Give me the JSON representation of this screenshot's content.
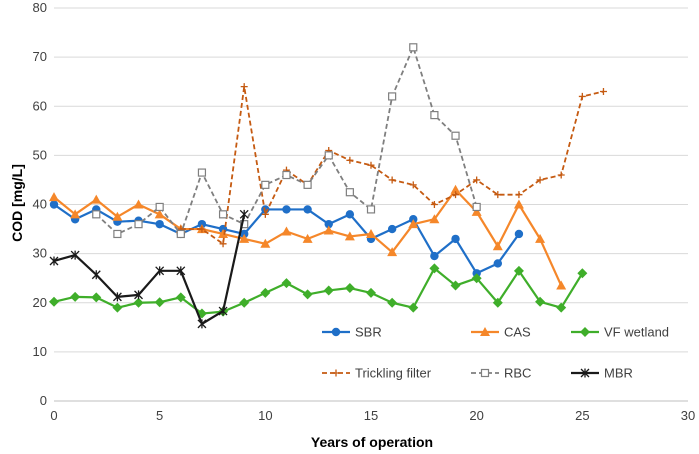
{
  "chart_data": {
    "type": "line",
    "title": "",
    "xlabel": "Years of operation",
    "ylabel": "COD [mg/L]",
    "xlim": [
      0,
      30
    ],
    "ylim": [
      0,
      80
    ],
    "xticks": [
      "0",
      "5",
      "10",
      "15",
      "20",
      "25",
      "30"
    ],
    "yticks": [
      "0",
      "10",
      "20",
      "30",
      "40",
      "50",
      "60",
      "70",
      "80"
    ],
    "grid": "horizontal",
    "legend_position": "lower-center",
    "series": [
      {
        "name": "SBR",
        "color": "#1f6fc8",
        "marker": "circle",
        "dash": "solid",
        "x": [
          0,
          1,
          2,
          3,
          4,
          5,
          6,
          7,
          8,
          9,
          10,
          11,
          12,
          13,
          14,
          15,
          16,
          17,
          18,
          19,
          20,
          21,
          22
        ],
        "y": [
          40,
          37,
          39,
          36.5,
          36.7,
          36,
          34,
          36,
          35,
          34,
          39,
          39,
          39,
          36,
          38,
          33,
          35,
          37,
          29.5,
          33,
          26,
          28,
          34
        ]
      },
      {
        "name": "CAS",
        "color": "#f5872a",
        "marker": "triangle",
        "dash": "solid",
        "x": [
          0,
          1,
          2,
          3,
          4,
          5,
          6,
          7,
          8,
          9,
          10,
          11,
          12,
          13,
          14,
          15,
          16,
          17,
          18,
          19,
          20,
          21,
          22,
          23,
          24
        ],
        "y": [
          41.5,
          38,
          41,
          37.5,
          40,
          38,
          35,
          35,
          34,
          33,
          32,
          34.5,
          33,
          34.7,
          33.5,
          34,
          30.3,
          36,
          37,
          43,
          38.5,
          31.5,
          40,
          33,
          23.5
        ]
      },
      {
        "name": "VF wetland",
        "color": "#3fae2a",
        "marker": "diamond",
        "dash": "solid",
        "x": [
          0,
          1,
          2,
          3,
          4,
          5,
          6,
          7,
          8,
          9,
          10,
          11,
          12,
          13,
          14,
          15,
          16,
          17,
          18,
          19,
          20,
          21,
          22,
          23,
          24,
          25
        ],
        "y": [
          20.2,
          21.2,
          21.1,
          19,
          20,
          20.1,
          21.1,
          17.8,
          18.2,
          20,
          22,
          24,
          21.7,
          22.5,
          23,
          22,
          20,
          19,
          27,
          23.5,
          25,
          20,
          26.5,
          20.2,
          19,
          26
        ]
      },
      {
        "name": "Trickling filter",
        "color": "#c55a11",
        "marker": "plus",
        "dash": "dashed",
        "x": [
          6,
          7,
          8,
          9,
          10,
          11,
          12,
          13,
          14,
          15,
          16,
          17,
          18,
          19,
          20,
          21,
          22,
          23,
          24,
          25,
          26
        ],
        "y": [
          35,
          35,
          32,
          64,
          38,
          47,
          44,
          51,
          49,
          48,
          45,
          44,
          40,
          42,
          45,
          42,
          42,
          45,
          46,
          62,
          63
        ]
      },
      {
        "name": "RBC",
        "color": "#7f7f7f",
        "marker": "square",
        "dash": "dashed",
        "x": [
          2,
          3,
          4,
          5,
          6,
          7,
          8,
          9,
          10,
          11,
          12,
          13,
          14,
          15,
          16,
          17,
          18,
          19,
          20
        ],
        "y": [
          38,
          34,
          36,
          39.5,
          34,
          46.5,
          38,
          36,
          44,
          46,
          44,
          50,
          42.5,
          39,
          62,
          72,
          58.2,
          54,
          39.5
        ]
      },
      {
        "name": "MBR",
        "color": "#1a1a1a",
        "marker": "star",
        "dash": "solid",
        "x": [
          0,
          1,
          2,
          3,
          4,
          5,
          6,
          7,
          8,
          9
        ],
        "y": [
          28.5,
          29.7,
          25.7,
          21.2,
          21.6,
          26.5,
          26.5,
          15.7,
          18.3,
          38
        ]
      }
    ]
  }
}
